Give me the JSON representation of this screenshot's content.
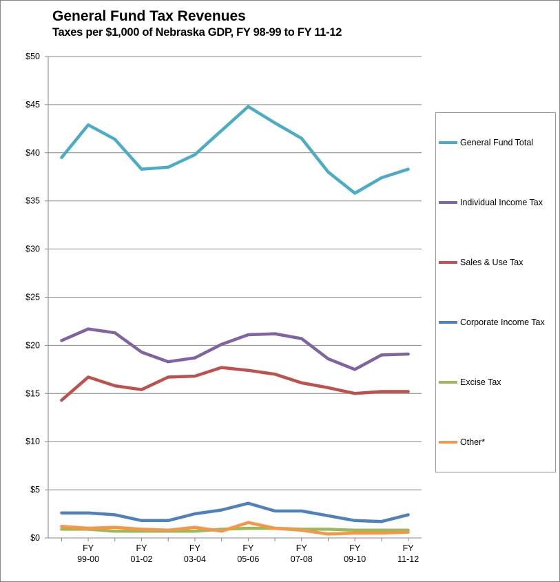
{
  "chart_data": {
    "type": "line",
    "title": "General Fund Tax Revenues",
    "subtitle": "Taxes per $1,000 of Nebraska GDP, FY 98-99 to FY 11-12",
    "xlabel": "",
    "ylabel": "",
    "ylim": [
      0,
      50
    ],
    "y_ticks": [
      "$0",
      "$5",
      "$10",
      "$15",
      "$20",
      "$25",
      "$30",
      "$35",
      "$40",
      "$45",
      "$50"
    ],
    "x_tick_labels": [
      {
        "index": 1,
        "line1": "FY",
        "line2": "99-00"
      },
      {
        "index": 3,
        "line1": "FY",
        "line2": "01-02"
      },
      {
        "index": 5,
        "line1": "FY",
        "line2": "03-04"
      },
      {
        "index": 7,
        "line1": "FY",
        "line2": "05-06"
      },
      {
        "index": 9,
        "line1": "FY",
        "line2": "07-08"
      },
      {
        "index": 11,
        "line1": "FY",
        "line2": "09-10"
      },
      {
        "index": 13,
        "line1": "FY",
        "line2": "11-12"
      }
    ],
    "grid": true,
    "legend_position": "right",
    "series": [
      {
        "name": "General Fund Total",
        "color": "#4BACC6",
        "values": [
          39.5,
          42.9,
          41.4,
          38.3,
          38.5,
          39.8,
          42.3,
          44.8,
          43.1,
          41.5,
          38.0,
          35.8,
          37.4,
          38.3
        ]
      },
      {
        "name": "Individual Income Tax",
        "color": "#8064A2",
        "values": [
          20.5,
          21.7,
          21.3,
          19.3,
          18.3,
          18.7,
          20.1,
          21.1,
          21.2,
          20.7,
          18.6,
          17.5,
          19.0,
          19.1
        ]
      },
      {
        "name": "Sales & Use Tax",
        "color": "#C0504D",
        "values": [
          14.3,
          16.7,
          15.8,
          15.4,
          16.7,
          16.8,
          17.7,
          17.4,
          17.0,
          16.1,
          15.6,
          15.0,
          15.2,
          15.2
        ]
      },
      {
        "name": "Corporate Income Tax",
        "color": "#4F81BD",
        "values": [
          2.6,
          2.6,
          2.4,
          1.8,
          1.8,
          2.5,
          2.9,
          3.6,
          2.8,
          2.8,
          2.3,
          1.8,
          1.7,
          2.4
        ]
      },
      {
        "name": "Excise Tax",
        "color": "#9BBB59",
        "values": [
          0.9,
          0.9,
          0.7,
          0.7,
          0.7,
          0.7,
          0.9,
          1.0,
          1.0,
          0.9,
          0.9,
          0.8,
          0.8,
          0.8
        ]
      },
      {
        "name": "Other*",
        "color": "#F79646",
        "values": [
          1.2,
          1.0,
          1.1,
          0.9,
          0.8,
          1.1,
          0.7,
          1.6,
          1.0,
          0.8,
          0.4,
          0.5,
          0.5,
          0.6
        ]
      }
    ]
  }
}
